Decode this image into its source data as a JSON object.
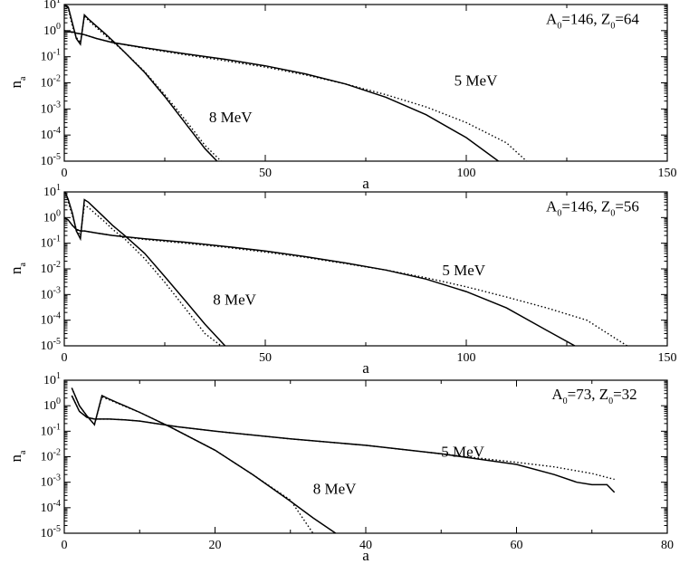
{
  "chart_data": [
    {
      "type": "line",
      "annotation": "A0=146, Z0=64",
      "annotation_parts": {
        "a": "A",
        "a_sub": "0",
        "mid": "=146, Z",
        "z_sub": "0",
        "end": "=64"
      },
      "xlabel": "a",
      "ylabel": "n",
      "ylabel_sub": "a",
      "xlim": [
        0,
        150
      ],
      "ylim_log10": [
        -5,
        1
      ],
      "xticks": [
        0,
        50,
        100,
        150
      ],
      "yticks": [
        "10^1",
        "10^0",
        "10^-1",
        "10^-2",
        "10^-3",
        "10^-4",
        "10^-5"
      ],
      "series": [
        {
          "label": "5 MeV",
          "style": "solid",
          "x": [
            0,
            1,
            2,
            3,
            4,
            5,
            8,
            12,
            20,
            30,
            40,
            50,
            60,
            70,
            80,
            90,
            100,
            108
          ],
          "y": [
            1.0,
            0.9,
            0.9,
            0.8,
            0.75,
            0.7,
            0.5,
            0.35,
            0.22,
            0.13,
            0.08,
            0.045,
            0.022,
            0.009,
            0.0028,
            0.0006,
            8e-05,
            1e-05
          ]
        },
        {
          "label": "",
          "style": "dotted",
          "x": [
            0,
            1,
            2,
            3,
            4,
            5,
            8,
            12,
            20,
            30,
            40,
            50,
            60,
            70,
            80,
            90,
            100,
            110,
            115
          ],
          "y": [
            1.0,
            0.9,
            0.85,
            0.8,
            0.75,
            0.7,
            0.5,
            0.35,
            0.21,
            0.12,
            0.07,
            0.04,
            0.02,
            0.009,
            0.0035,
            0.0012,
            0.0003,
            5e-05,
            1e-05
          ]
        },
        {
          "label": "8 MeV",
          "style": "solid",
          "x": [
            0,
            1,
            2,
            3,
            4,
            5,
            6,
            8,
            10,
            13,
            15,
            20,
            25,
            30,
            35,
            38
          ],
          "y": [
            10,
            8,
            2,
            0.5,
            0.3,
            4,
            2.8,
            1.5,
            0.8,
            0.3,
            0.15,
            0.025,
            0.003,
            0.0003,
            3e-05,
            1e-05
          ]
        },
        {
          "label": "",
          "style": "dotted",
          "x": [
            0,
            1,
            2,
            3,
            4,
            5,
            6,
            8,
            10,
            13,
            15,
            20,
            25,
            30,
            35,
            39
          ],
          "y": [
            10,
            7,
            1.5,
            0.55,
            0.35,
            3.5,
            2.5,
            1.3,
            0.7,
            0.28,
            0.15,
            0.027,
            0.0035,
            0.0004,
            4e-05,
            1e-05
          ]
        }
      ]
    },
    {
      "type": "line",
      "annotation": "A0=146, Z0=56",
      "annotation_parts": {
        "a": "A",
        "a_sub": "0",
        "mid": "=146, Z",
        "z_sub": "0",
        "end": "=56"
      },
      "xlabel": "a",
      "ylabel": "n",
      "ylabel_sub": "a",
      "xlim": [
        0,
        150
      ],
      "ylim_log10": [
        -5,
        1
      ],
      "xticks": [
        0,
        50,
        100,
        150
      ],
      "yticks": [
        "10^1",
        "10^0",
        "10^-1",
        "10^-2",
        "10^-3",
        "10^-4",
        "10^-5"
      ],
      "series": [
        {
          "label": "5 MeV",
          "style": "solid",
          "x": [
            0,
            1,
            2,
            3,
            4,
            5,
            8,
            12,
            20,
            30,
            40,
            50,
            60,
            70,
            80,
            90,
            100,
            110,
            120,
            127
          ],
          "y": [
            1.0,
            0.8,
            0.5,
            0.35,
            0.3,
            0.3,
            0.25,
            0.2,
            0.15,
            0.11,
            0.075,
            0.05,
            0.03,
            0.017,
            0.009,
            0.004,
            0.0013,
            0.0003,
            4e-05,
            1e-05
          ]
        },
        {
          "label": "",
          "style": "dotted",
          "x": [
            0,
            1,
            2,
            3,
            4,
            5,
            8,
            12,
            20,
            30,
            40,
            50,
            60,
            70,
            80,
            90,
            100,
            110,
            120,
            130,
            140
          ],
          "y": [
            1.0,
            0.8,
            0.5,
            0.35,
            0.3,
            0.3,
            0.25,
            0.2,
            0.14,
            0.1,
            0.07,
            0.045,
            0.028,
            0.016,
            0.009,
            0.0045,
            0.002,
            0.0008,
            0.0003,
            0.0001,
            1e-05
          ]
        },
        {
          "label": "8 MeV",
          "style": "solid",
          "x": [
            0,
            1,
            2,
            3,
            4,
            5,
            6,
            8,
            10,
            12,
            15,
            20,
            25,
            30,
            35,
            40,
            42
          ],
          "y": [
            12,
            5,
            1.5,
            0.3,
            0.15,
            5,
            4,
            2,
            1,
            0.5,
            0.2,
            0.04,
            0.005,
            0.0006,
            7e-05,
            1e-05,
            5e-06
          ]
        },
        {
          "label": "",
          "style": "dotted",
          "x": [
            0,
            1,
            2,
            3,
            4,
            5,
            6,
            8,
            10,
            12,
            15,
            20,
            25,
            30,
            35,
            39
          ],
          "y": [
            10,
            4,
            1.2,
            0.35,
            0.2,
            3,
            2.5,
            1.3,
            0.7,
            0.35,
            0.15,
            0.025,
            0.003,
            0.0003,
            3e-05,
            1e-05
          ]
        }
      ]
    },
    {
      "type": "line",
      "annotation": "A0=73, Z0=32",
      "annotation_parts": {
        "a": "A",
        "a_sub": "0",
        "mid": "=73, Z",
        "z_sub": "0",
        "end": "=32"
      },
      "xlabel": "a",
      "ylabel": "n",
      "ylabel_sub": "a",
      "xlim": [
        0,
        80
      ],
      "ylim_log10": [
        -5,
        1
      ],
      "xticks": [
        0,
        20,
        40,
        60,
        80
      ],
      "yticks": [
        "10^1",
        "10^0",
        "10^-1",
        "10^-2",
        "10^-3",
        "10^-4",
        "10^-5"
      ],
      "series": [
        {
          "label": "5 MeV",
          "style": "solid",
          "x": [
            1,
            2,
            3,
            4,
            5,
            6,
            8,
            10,
            15,
            20,
            30,
            40,
            50,
            60,
            65,
            68,
            70,
            72,
            73
          ],
          "y": [
            2.5,
            0.6,
            0.35,
            0.3,
            0.3,
            0.3,
            0.28,
            0.25,
            0.15,
            0.1,
            0.05,
            0.028,
            0.013,
            0.005,
            0.002,
            0.001,
            0.0008,
            0.0008,
            0.0004
          ]
        },
        {
          "label": "",
          "style": "dotted",
          "x": [
            1,
            2,
            3,
            4,
            5,
            6,
            8,
            10,
            15,
            20,
            30,
            40,
            50,
            60,
            65,
            70,
            73
          ],
          "y": [
            2.5,
            0.6,
            0.35,
            0.3,
            0.3,
            0.3,
            0.28,
            0.25,
            0.15,
            0.1,
            0.05,
            0.028,
            0.013,
            0.006,
            0.004,
            0.0022,
            0.0013
          ]
        },
        {
          "label": "8 MeV",
          "style": "solid",
          "x": [
            1,
            2,
            3,
            4,
            5,
            6,
            8,
            10,
            14,
            20,
            25,
            30,
            33,
            36
          ],
          "y": [
            5,
            1.0,
            0.4,
            0.18,
            2.5,
            1.8,
            1.0,
            0.55,
            0.15,
            0.018,
            0.002,
            0.00018,
            4e-05,
            1e-05
          ]
        },
        {
          "label": "",
          "style": "dotted",
          "x": [
            1,
            2,
            3,
            4,
            5,
            6,
            8,
            10,
            14,
            20,
            25,
            30,
            33
          ],
          "y": [
            5,
            1.0,
            0.4,
            0.18,
            2.2,
            1.7,
            0.95,
            0.55,
            0.15,
            0.018,
            0.002,
            0.0002,
            1e-05
          ]
        }
      ]
    }
  ]
}
